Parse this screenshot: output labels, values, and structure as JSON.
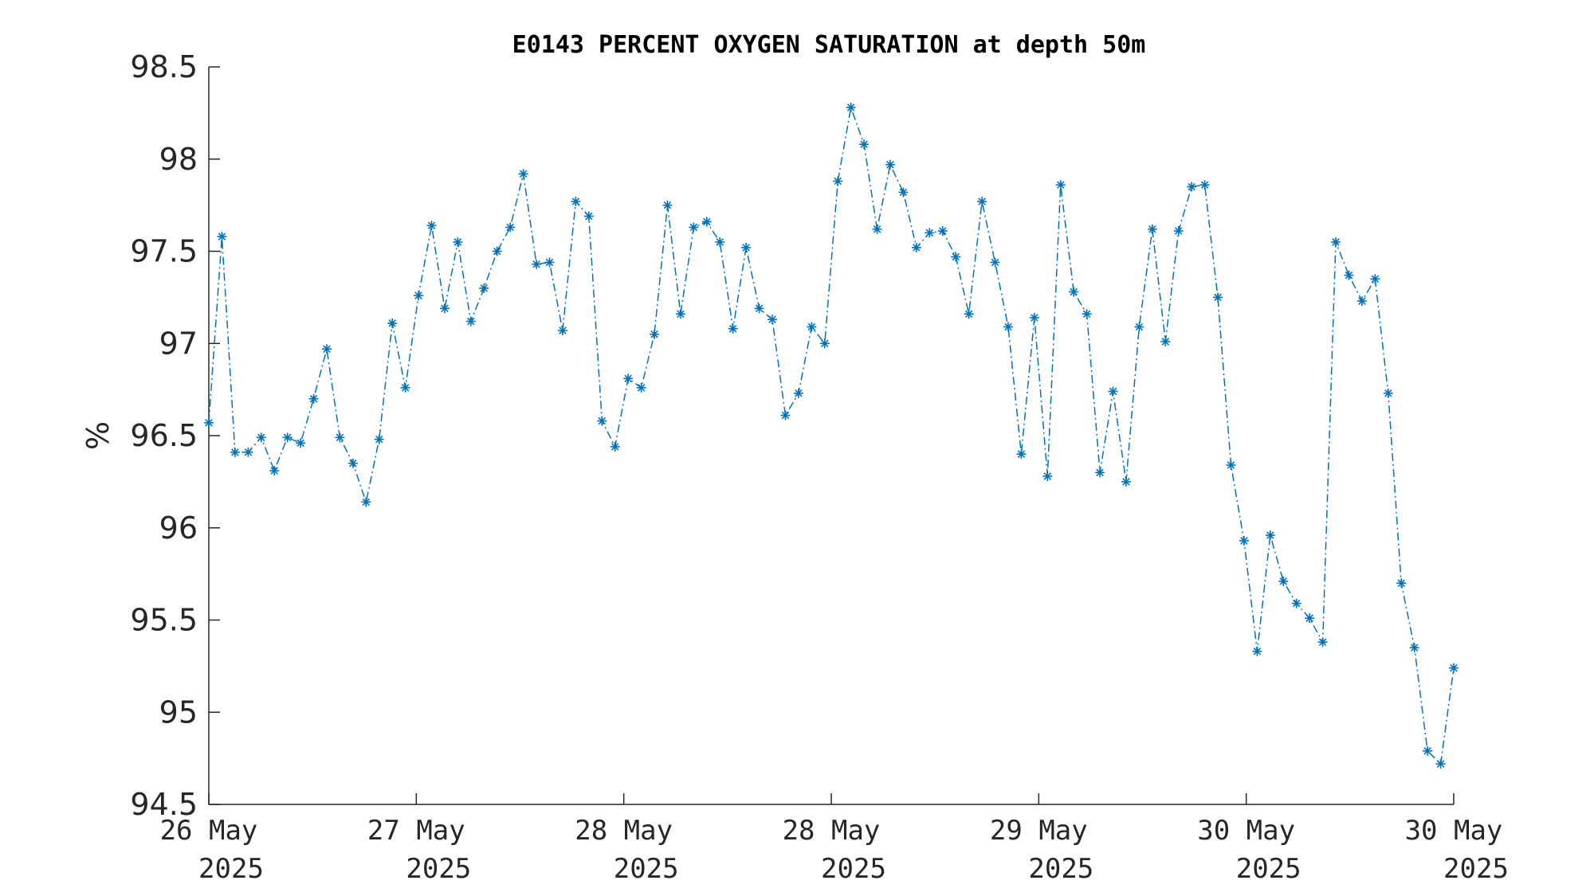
{
  "chart_data": {
    "type": "line",
    "title": "E0143 PERCENT OXYGEN SATURATION at depth 50m",
    "xlabel": "",
    "ylabel": "%",
    "ylim": [
      94.5,
      98.5
    ],
    "yticks": [
      "98.5",
      "98",
      "97.5",
      "97",
      "96.5",
      "96",
      "95.5",
      "95",
      "94.5"
    ],
    "ytick_values": [
      98.5,
      98,
      97.5,
      97,
      96.5,
      96,
      95.5,
      95,
      94.5
    ],
    "xticks": [
      {
        "line1": "26 May",
        "line2": "2025"
      },
      {
        "line1": "27 May",
        "line2": "2025"
      },
      {
        "line1": "28 May",
        "line2": "2025"
      },
      {
        "line1": "28 May",
        "line2": "2025"
      },
      {
        "line1": "29 May",
        "line2": "2025"
      },
      {
        "line1": "30 May",
        "line2": "2025"
      },
      {
        "line1": "30 May",
        "line2": "2025"
      }
    ],
    "grid": false,
    "color": "#0072BD",
    "marker": "asterisk",
    "line_style": "dash-dot",
    "series": [
      {
        "values": [
          96.57,
          97.58,
          96.41,
          96.41,
          96.49,
          96.31,
          96.49,
          96.46,
          96.7,
          96.97,
          96.49,
          96.35,
          96.14,
          96.48,
          97.11,
          96.76,
          97.26,
          97.64,
          97.19,
          97.55,
          97.12,
          97.3,
          97.5,
          97.63,
          97.92,
          97.43,
          97.44,
          97.07,
          97.77,
          97.69,
          96.58,
          96.44,
          96.81,
          96.76,
          97.05,
          97.75,
          97.16,
          97.63,
          97.66,
          97.55,
          97.08,
          97.52,
          97.19,
          97.13,
          96.61,
          96.73,
          97.09,
          97.0,
          97.88,
          98.28,
          98.08,
          97.62,
          97.97,
          97.82,
          97.52,
          97.6,
          97.61,
          97.47,
          97.16,
          97.77,
          97.44,
          97.09,
          96.4,
          97.14,
          96.28,
          97.86,
          97.28,
          97.16,
          96.3,
          96.74,
          96.25,
          97.09,
          97.62,
          97.01,
          97.61,
          97.85,
          97.86,
          97.25,
          96.34,
          95.93,
          95.33,
          95.96,
          95.71,
          95.59,
          95.51,
          95.38,
          97.55,
          97.37,
          97.23,
          97.35,
          96.73,
          95.7,
          95.35,
          94.79,
          94.72,
          95.24
        ]
      }
    ]
  }
}
